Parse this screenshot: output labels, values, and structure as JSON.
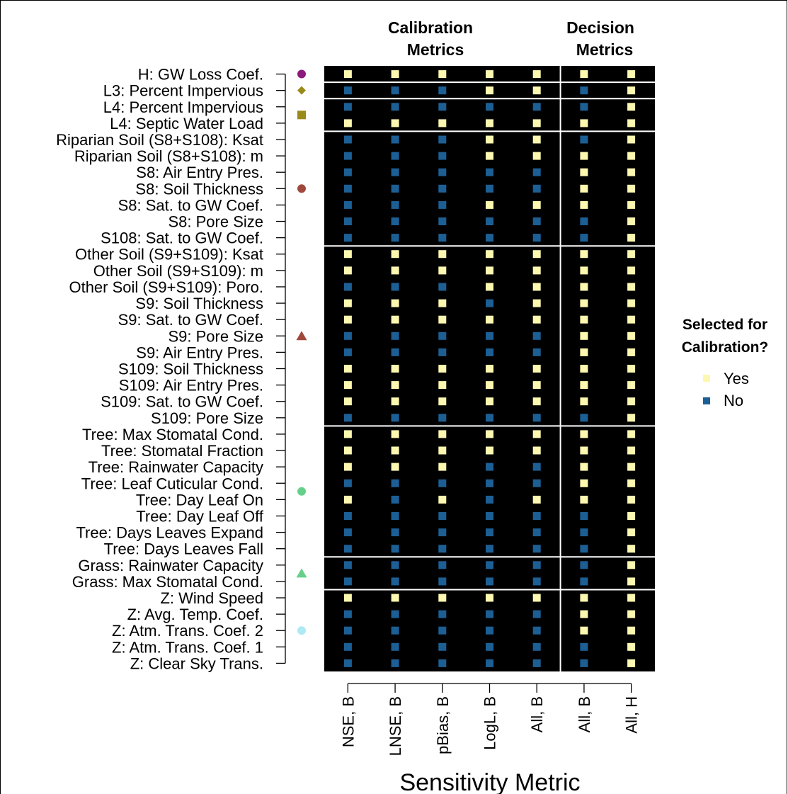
{
  "chart_data": {
    "type": "heatmap",
    "xlabel": "Sensitivity Metric",
    "column_groups": [
      {
        "label_line1": "Calibration",
        "label_line2": "Metrics",
        "columns": [
          0,
          1,
          2,
          3,
          4
        ]
      },
      {
        "label_line1": "Decision",
        "label_line2": "Metrics",
        "columns": [
          5,
          6
        ]
      }
    ],
    "columns": [
      "NSE, B",
      "LNSE, B",
      "pBias, B",
      "LogL, B",
      "All, B",
      "All, B",
      "All, H"
    ],
    "rows": [
      "H: GW Loss Coef.",
      "L3: Percent Impervious",
      "L4: Percent Impervious",
      "L4: Septic Water Load",
      "Riparian Soil (S8+S108): Ksat",
      "Riparian Soil (S8+S108): m",
      "S8: Air Entry Pres.",
      "S8: Soil Thickness",
      "S8: Sat. to GW Coef.",
      "S8: Pore Size",
      "S108: Sat. to GW Coef.",
      "Other Soil (S9+S109): Ksat",
      "Other Soil (S9+S109): m",
      "Other Soil (S9+S109): Poro.",
      "S9: Soil Thickness",
      "S9: Sat. to GW Coef.",
      "S9: Pore Size",
      "S9: Air Entry Pres.",
      "S109: Soil Thickness",
      "S109: Air Entry Pres.",
      "S109: Sat. to GW Coef.",
      "S109: Pore Size",
      "Tree: Max Stomatal Cond.",
      "Tree: Stomatal Fraction",
      "Tree: Rainwater Capacity",
      "Tree: Leaf Cuticular Cond.",
      "Tree: Day Leaf On",
      "Tree: Day Leaf Off",
      "Tree: Days Leaves Expand",
      "Tree: Days Leaves Fall",
      "Grass: Rainwater Capacity",
      "Grass: Max Stomatal Cond.",
      "Z: Wind Speed",
      "Z: Avg. Temp. Coef.",
      "Z: Atm. Trans. Coef. 2",
      "Z: Atm. Trans. Coef. 1",
      "Z: Clear Sky Trans."
    ],
    "values": [
      [
        1,
        1,
        1,
        1,
        1,
        1,
        1
      ],
      [
        0,
        0,
        0,
        1,
        1,
        0,
        1
      ],
      [
        0,
        0,
        0,
        0,
        0,
        0,
        1
      ],
      [
        1,
        1,
        1,
        1,
        1,
        1,
        1
      ],
      [
        0,
        0,
        0,
        1,
        1,
        0,
        1
      ],
      [
        0,
        0,
        0,
        1,
        1,
        1,
        1
      ],
      [
        0,
        0,
        0,
        0,
        0,
        1,
        1
      ],
      [
        0,
        0,
        0,
        0,
        0,
        1,
        1
      ],
      [
        0,
        0,
        0,
        1,
        1,
        1,
        1
      ],
      [
        0,
        0,
        0,
        0,
        0,
        0,
        1
      ],
      [
        0,
        0,
        0,
        0,
        0,
        0,
        1
      ],
      [
        1,
        1,
        1,
        1,
        1,
        1,
        1
      ],
      [
        1,
        1,
        1,
        1,
        1,
        1,
        1
      ],
      [
        0,
        0,
        0,
        1,
        1,
        1,
        1
      ],
      [
        1,
        1,
        1,
        0,
        1,
        1,
        1
      ],
      [
        1,
        1,
        1,
        1,
        1,
        1,
        1
      ],
      [
        0,
        0,
        0,
        0,
        0,
        1,
        1
      ],
      [
        0,
        0,
        0,
        0,
        0,
        1,
        1
      ],
      [
        1,
        1,
        1,
        1,
        1,
        1,
        1
      ],
      [
        1,
        1,
        1,
        1,
        1,
        1,
        1
      ],
      [
        1,
        1,
        1,
        1,
        1,
        1,
        1
      ],
      [
        0,
        0,
        0,
        0,
        0,
        0,
        1
      ],
      [
        1,
        1,
        1,
        1,
        1,
        1,
        1
      ],
      [
        1,
        1,
        1,
        1,
        1,
        1,
        1
      ],
      [
        1,
        1,
        1,
        0,
        0,
        1,
        1
      ],
      [
        0,
        0,
        0,
        0,
        0,
        1,
        1
      ],
      [
        1,
        0,
        1,
        0,
        1,
        1,
        1
      ],
      [
        0,
        0,
        0,
        0,
        0,
        0,
        1
      ],
      [
        0,
        0,
        0,
        0,
        0,
        0,
        1
      ],
      [
        0,
        0,
        0,
        0,
        0,
        0,
        1
      ],
      [
        0,
        0,
        0,
        0,
        0,
        0,
        1
      ],
      [
        0,
        0,
        0,
        0,
        0,
        0,
        1
      ],
      [
        1,
        1,
        1,
        1,
        1,
        1,
        1
      ],
      [
        0,
        0,
        0,
        0,
        0,
        1,
        1
      ],
      [
        0,
        0,
        0,
        0,
        0,
        1,
        1
      ],
      [
        0,
        0,
        0,
        0,
        0,
        0,
        1
      ],
      [
        0,
        0,
        0,
        0,
        0,
        0,
        1
      ]
    ],
    "row_groups": [
      {
        "rows": [
          0,
          0
        ],
        "marker": {
          "shape": "circle",
          "color": "#8b1a7a"
        }
      },
      {
        "rows": [
          1,
          1
        ],
        "marker": {
          "shape": "diamond",
          "color": "#9a8a1a"
        }
      },
      {
        "rows": [
          2,
          3
        ],
        "marker": {
          "shape": "square",
          "color": "#9a8a1a"
        }
      },
      {
        "rows": [
          4,
          10
        ],
        "marker": {
          "shape": "circle",
          "color": "#a0483c"
        }
      },
      {
        "rows": [
          11,
          21
        ],
        "marker": {
          "shape": "triangle",
          "color": "#a0483c"
        }
      },
      {
        "rows": [
          22,
          29
        ],
        "marker": {
          "shape": "circle",
          "color": "#66d08a"
        }
      },
      {
        "rows": [
          30,
          31
        ],
        "marker": {
          "shape": "triangle",
          "color": "#66d08a"
        }
      },
      {
        "rows": [
          32,
          36
        ],
        "marker": {
          "shape": "circle",
          "color": "#aeeaf5"
        }
      }
    ],
    "colors": {
      "yes": "#fcf8b0",
      "no": "#1c5f95",
      "background": "#000000",
      "separator": "#ffffff"
    },
    "legend": {
      "title_line1": "Selected for",
      "title_line2": "Calibration?",
      "items": [
        {
          "label": "Yes",
          "color": "#fcf8b0"
        },
        {
          "label": "No",
          "color": "#1c5f95"
        }
      ],
      "position": "right"
    }
  }
}
